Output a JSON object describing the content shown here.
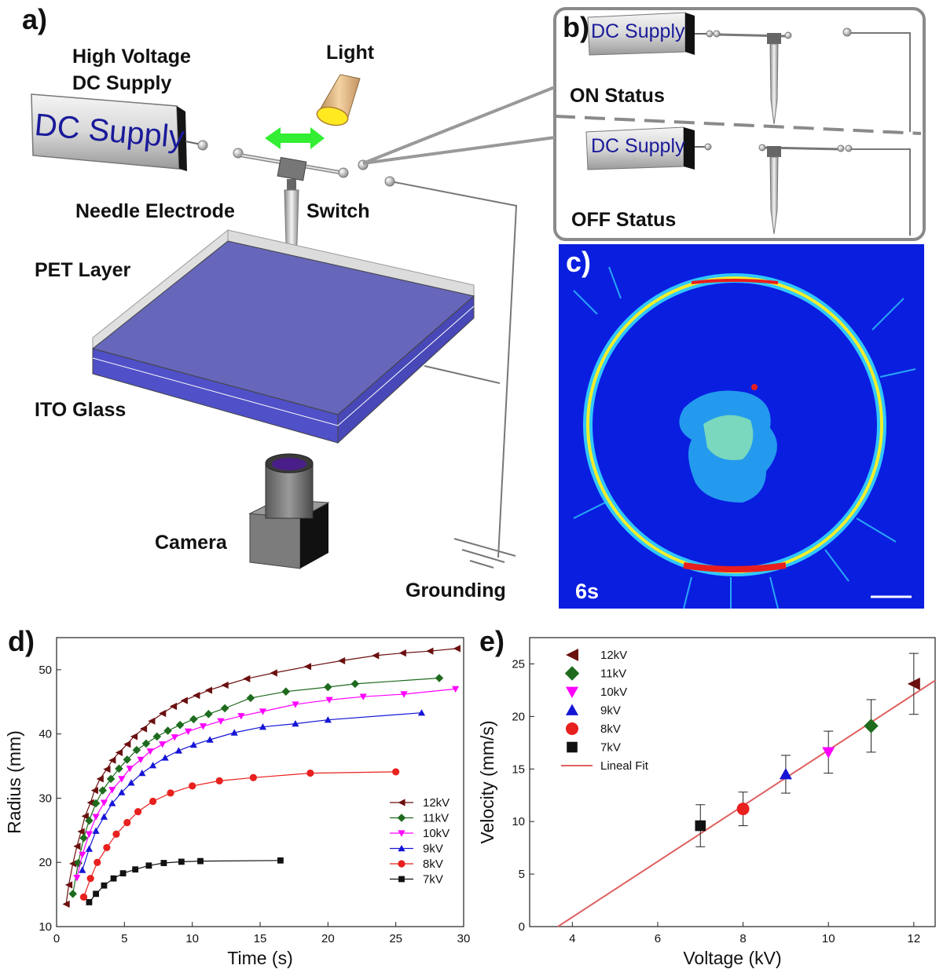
{
  "panels": {
    "a": {
      "letter": "a)",
      "labels": {
        "high_voltage": "High Voltage",
        "dc_supply_label": "DC Supply",
        "light": "Light",
        "needle_electrode": "Needle Electrode",
        "switch": "Switch",
        "pet_layer": "PET Layer",
        "ito_glass": "ITO Glass",
        "camera": "Camera",
        "grounding": "Grounding"
      },
      "dc_box_text": "DC Supply"
    },
    "b": {
      "letter": "b)",
      "dc_box_text": "DC Supply",
      "on_status": "ON Status",
      "off_status": "OFF Status"
    },
    "c": {
      "letter": "c)",
      "time_label": "6s"
    },
    "d": {
      "letter": "d)"
    },
    "e": {
      "letter": "e)"
    }
  },
  "colors": {
    "12kV": "#6b0f0f",
    "11kV": "#1e6b1e",
    "10kV": "#ff00ff",
    "9kV": "#1515d6",
    "8kV": "#e8201e",
    "7kV": "#111111",
    "fit": "#e06060",
    "switch_arrow": "#33ee33",
    "pet_fill": "#6666bb",
    "image_bg": "#0a1ee0"
  },
  "chart_data": [
    {
      "type": "line",
      "panel": "d",
      "xlabel": "Time (s)",
      "ylabel": "Radius (mm)",
      "xlim": [
        0,
        30
      ],
      "ylim": [
        10,
        55
      ],
      "xticks": [
        0,
        5,
        10,
        15,
        20,
        25,
        30
      ],
      "yticks": [
        10,
        20,
        30,
        40,
        50
      ],
      "legend_position": "right",
      "series": [
        {
          "name": "12kV",
          "marker": "triangle-left",
          "points": [
            [
              0.7,
              13.5
            ],
            [
              0.9,
              16.5
            ],
            [
              1.2,
              19.8
            ],
            [
              1.5,
              22.5
            ],
            [
              1.8,
              24.8
            ],
            [
              2.1,
              27.2
            ],
            [
              2.5,
              29.3
            ],
            [
              2.8,
              31.2
            ],
            [
              3.2,
              33
            ],
            [
              3.7,
              34.5
            ],
            [
              4.1,
              35.9
            ],
            [
              4.6,
              37.1
            ],
            [
              5.2,
              38.4
            ],
            [
              5.7,
              39.6
            ],
            [
              6.4,
              40.8
            ],
            [
              7,
              42
            ],
            [
              7.8,
              43.2
            ],
            [
              8.6,
              44.3
            ],
            [
              9.4,
              45.2
            ],
            [
              10.3,
              46
            ],
            [
              11.2,
              46.8
            ],
            [
              12.4,
              47.6
            ],
            [
              14,
              48.6
            ],
            [
              16,
              49.5
            ],
            [
              18.5,
              50.5
            ],
            [
              21,
              51.4
            ],
            [
              23.5,
              52.2
            ],
            [
              25.5,
              52.6
            ],
            [
              27.5,
              52.9
            ],
            [
              29.5,
              53.3
            ]
          ]
        },
        {
          "name": "11kV",
          "marker": "diamond",
          "points": [
            [
              1.2,
              15.1
            ],
            [
              1.6,
              19.9
            ],
            [
              2.0,
              23.8
            ],
            [
              2.4,
              26.5
            ],
            [
              2.9,
              29.2
            ],
            [
              3.4,
              31.2
            ],
            [
              4.0,
              33
            ],
            [
              4.6,
              34.6
            ],
            [
              5.2,
              36
            ],
            [
              5.9,
              37.5
            ],
            [
              6.6,
              38.5
            ],
            [
              7.4,
              39.6
            ],
            [
              8.2,
              40.5
            ],
            [
              9.1,
              41.4
            ],
            [
              10.1,
              42.3
            ],
            [
              11.2,
              43.1
            ],
            [
              12.4,
              44
            ],
            [
              14.3,
              45.6
            ],
            [
              16.9,
              46.6
            ],
            [
              20,
              47.3
            ],
            [
              22,
              47.8
            ],
            [
              28.2,
              48.7
            ]
          ]
        },
        {
          "name": "10kV",
          "marker": "triangle-down",
          "points": [
            [
              1.5,
              17.6
            ],
            [
              1.9,
              21.2
            ],
            [
              2.4,
              24.4
            ],
            [
              2.9,
              27.1
            ],
            [
              3.5,
              29.3
            ],
            [
              4.1,
              31.3
            ],
            [
              4.8,
              33
            ],
            [
              5.4,
              34.6
            ],
            [
              6.2,
              36
            ],
            [
              6.9,
              37.3
            ],
            [
              7.8,
              38.4
            ],
            [
              8.7,
              39.5
            ],
            [
              9.7,
              40.4
            ],
            [
              10.8,
              41.2
            ],
            [
              12.1,
              42
            ],
            [
              13.6,
              42.8
            ],
            [
              15.2,
              43.5
            ],
            [
              17.6,
              44.6
            ],
            [
              20.1,
              45.3
            ],
            [
              22.6,
              45.8
            ],
            [
              25.6,
              46.2
            ],
            [
              29.4,
              47
            ]
          ]
        },
        {
          "name": "9kV",
          "marker": "triangle-up",
          "points": [
            [
              1.9,
              18.8
            ],
            [
              2.4,
              22.1
            ],
            [
              2.9,
              24.9
            ],
            [
              3.5,
              27.1
            ],
            [
              4.1,
              29.2
            ],
            [
              4.8,
              30.9
            ],
            [
              5.5,
              32.4
            ],
            [
              6.3,
              33.9
            ],
            [
              7.1,
              35.1
            ],
            [
              8.0,
              36.3
            ],
            [
              9.0,
              37.4
            ],
            [
              10.1,
              38.3
            ],
            [
              11.3,
              39.1
            ],
            [
              13.1,
              40.2
            ],
            [
              15.2,
              41.1
            ],
            [
              17.6,
              41.6
            ],
            [
              20,
              42.2
            ],
            [
              26.9,
              43.3
            ]
          ]
        },
        {
          "name": "8kV",
          "marker": "circle",
          "points": [
            [
              2.0,
              14.6
            ],
            [
              2.5,
              17.5
            ],
            [
              3.0,
              20
            ],
            [
              3.7,
              22.3
            ],
            [
              4.4,
              24.4
            ],
            [
              5.2,
              26.2
            ],
            [
              6.0,
              27.9
            ],
            [
              7.1,
              29.5
            ],
            [
              8.4,
              30.8
            ],
            [
              10.0,
              31.9
            ],
            [
              12.0,
              32.7
            ],
            [
              14.5,
              33.2
            ],
            [
              18.7,
              33.9
            ],
            [
              25,
              34.1
            ]
          ]
        },
        {
          "name": "7kV",
          "marker": "square",
          "points": [
            [
              2.4,
              13.8
            ],
            [
              2.9,
              15.1
            ],
            [
              3.5,
              16.4
            ],
            [
              4.2,
              17.5
            ],
            [
              4.9,
              18.3
            ],
            [
              5.8,
              18.9
            ],
            [
              6.8,
              19.5
            ],
            [
              7.9,
              19.9
            ],
            [
              9.2,
              20.1
            ],
            [
              10.6,
              20.2
            ],
            [
              16.5,
              20.3
            ]
          ]
        }
      ]
    },
    {
      "type": "scatter",
      "panel": "e",
      "xlabel": "Voltage (kV)",
      "ylabel": "Velocity (mm/s)",
      "xlim": [
        3,
        12.5
      ],
      "ylim": [
        0,
        27.5
      ],
      "xticks": [
        4,
        6,
        8,
        10,
        12
      ],
      "yticks": [
        0,
        5,
        10,
        15,
        20,
        25
      ],
      "legend_position": "top-left",
      "series": [
        {
          "name": "12kV",
          "marker": "triangle-left",
          "x": 12,
          "y": 23.1,
          "err": 2.9
        },
        {
          "name": "11kV",
          "marker": "diamond",
          "x": 11,
          "y": 19.1,
          "err": 2.5
        },
        {
          "name": "10kV",
          "marker": "triangle-down",
          "x": 10,
          "y": 16.6,
          "err": 2.0
        },
        {
          "name": "9kV",
          "marker": "triangle-up",
          "x": 9,
          "y": 14.5,
          "err": 1.8
        },
        {
          "name": "8kV",
          "marker": "circle",
          "x": 8,
          "y": 11.2,
          "err": 1.6
        },
        {
          "name": "7kV",
          "marker": "square",
          "x": 7,
          "y": 9.6,
          "err": 2.0
        }
      ],
      "fit": {
        "name": "Lineal Fit",
        "slope": 2.65,
        "intercept": -9.7
      }
    }
  ]
}
